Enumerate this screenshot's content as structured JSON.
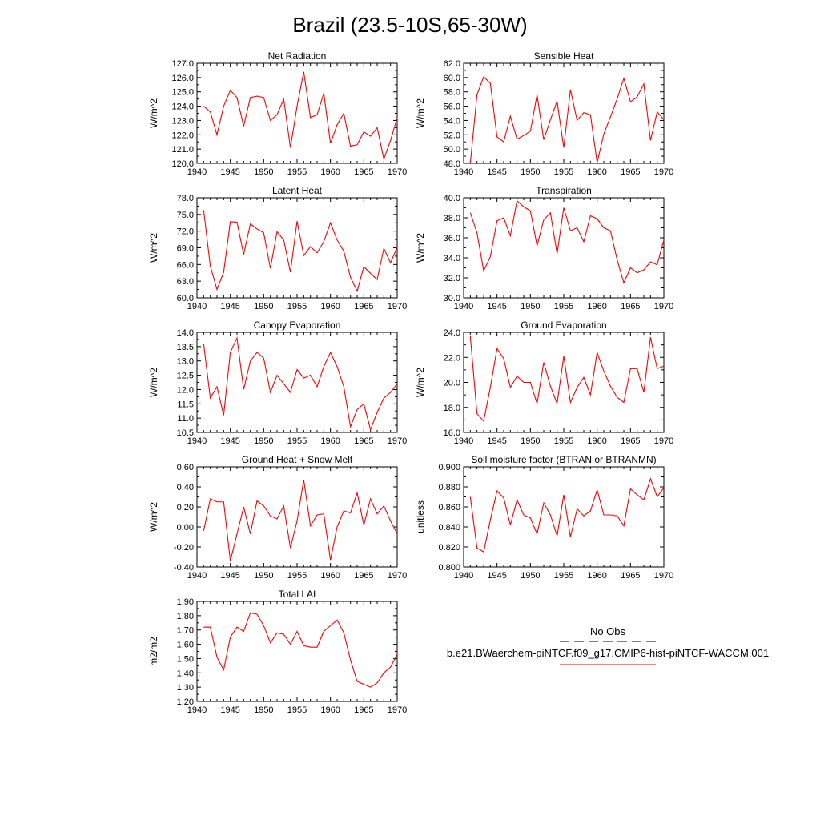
{
  "figure": {
    "title": "Brazil (23.5-10S,65-30W)",
    "legend": {
      "obs_label": "No Obs",
      "model_label": "b.e21.BWaerchem-piNTCF.f09_g17.CMIP6-hist-piNTCF-WACCM.001"
    },
    "colors": {
      "model_line": "#ff0000",
      "obs_line": "#000000",
      "axis": "#000000"
    }
  },
  "chart_data": [
    {
      "type": "line",
      "title": "Net Radiation",
      "ylabel": "W/m^2",
      "xlabel": "",
      "xlim": [
        1940,
        1970
      ],
      "ylim": [
        120.0,
        127.0
      ],
      "xticks": [
        "1940",
        "1945",
        "1950",
        "1955",
        "1960",
        "1965",
        "1970"
      ],
      "yticks": [
        "120.0",
        "121.0",
        "122.0",
        "123.0",
        "124.0",
        "125.0",
        "126.0",
        "127.0"
      ],
      "x": [
        1941,
        1942,
        1943,
        1944,
        1945,
        1946,
        1947,
        1948,
        1949,
        1950,
        1951,
        1952,
        1953,
        1954,
        1955,
        1956,
        1957,
        1958,
        1959,
        1960,
        1961,
        1962,
        1963,
        1964,
        1965,
        1966,
        1967,
        1968,
        1969,
        1970
      ],
      "series": [
        {
          "name": "b.e21.BWaerchem-piNTCF.f09_g17.CMIP6-hist-piNTCF-WACCM.001",
          "values": [
            124.0,
            123.6,
            122.0,
            124.0,
            125.1,
            124.6,
            122.6,
            124.6,
            124.7,
            124.6,
            123.0,
            123.4,
            124.5,
            121.1,
            124.0,
            126.4,
            123.2,
            123.4,
            124.9,
            121.4,
            122.7,
            123.5,
            121.2,
            121.3,
            122.2,
            121.9,
            122.5,
            120.3,
            121.6,
            123.2
          ]
        }
      ]
    },
    {
      "type": "line",
      "title": "Sensible Heat",
      "ylabel": "W/m^2",
      "xlabel": "",
      "xlim": [
        1940,
        1970
      ],
      "ylim": [
        48.0,
        62.0
      ],
      "xticks": [
        "1940",
        "1945",
        "1950",
        "1955",
        "1960",
        "1965",
        "1970"
      ],
      "yticks": [
        "48.0",
        "50.0",
        "52.0",
        "54.0",
        "56.0",
        "58.0",
        "60.0",
        "62.0"
      ],
      "x": [
        1941,
        1942,
        1943,
        1944,
        1945,
        1946,
        1947,
        1948,
        1949,
        1950,
        1951,
        1952,
        1953,
        1954,
        1955,
        1956,
        1957,
        1958,
        1959,
        1960,
        1961,
        1962,
        1963,
        1964,
        1965,
        1966,
        1967,
        1968,
        1969,
        1970
      ],
      "series": [
        {
          "name": "b.e21.BWaerchem-piNTCF.f09_g17.CMIP6-hist-piNTCF-WACCM.001",
          "values": [
            48.0,
            57.6,
            60.1,
            59.2,
            51.7,
            51.0,
            54.6,
            51.4,
            51.9,
            52.5,
            57.6,
            51.3,
            54.1,
            56.7,
            50.2,
            58.3,
            54.0,
            55.1,
            54.8,
            48.1,
            52.1,
            54.5,
            57.0,
            59.9,
            56.6,
            57.3,
            59.1,
            51.2,
            55.2,
            54.1
          ]
        }
      ]
    },
    {
      "type": "line",
      "title": "Latent Heat",
      "ylabel": "W/m^2",
      "xlabel": "",
      "xlim": [
        1940,
        1970
      ],
      "ylim": [
        60.0,
        78.0
      ],
      "xticks": [
        "1940",
        "1945",
        "1950",
        "1955",
        "1960",
        "1965",
        "1970"
      ],
      "yticks": [
        "60.0",
        "63.0",
        "66.0",
        "69.0",
        "72.0",
        "75.0",
        "78.0"
      ],
      "x": [
        1941,
        1942,
        1943,
        1944,
        1945,
        1946,
        1947,
        1948,
        1949,
        1950,
        1951,
        1952,
        1953,
        1954,
        1955,
        1956,
        1957,
        1958,
        1959,
        1960,
        1961,
        1962,
        1963,
        1964,
        1965,
        1966,
        1967,
        1968,
        1969,
        1970
      ],
      "series": [
        {
          "name": "b.e21.BWaerchem-piNTCF.f09_g17.CMIP6-hist-piNTCF-WACCM.001",
          "values": [
            75.8,
            65.7,
            61.5,
            64.6,
            73.7,
            73.6,
            67.8,
            73.3,
            72.4,
            71.7,
            65.3,
            71.9,
            70.4,
            64.6,
            73.8,
            67.6,
            69.2,
            68.1,
            70.1,
            73.5,
            70.4,
            68.4,
            63.7,
            61.2,
            65.6,
            64.4,
            63.3,
            68.9,
            66.3,
            69.1
          ]
        }
      ]
    },
    {
      "type": "line",
      "title": "Transpiration",
      "ylabel": "W/m^2",
      "xlabel": "",
      "xlim": [
        1940,
        1970
      ],
      "ylim": [
        30.0,
        40.0
      ],
      "xticks": [
        "1940",
        "1945",
        "1950",
        "1955",
        "1960",
        "1965",
        "1970"
      ],
      "yticks": [
        "30.0",
        "32.0",
        "34.0",
        "36.0",
        "38.0",
        "40.0"
      ],
      "x": [
        1941,
        1942,
        1943,
        1944,
        1945,
        1946,
        1947,
        1948,
        1949,
        1950,
        1951,
        1952,
        1953,
        1954,
        1955,
        1956,
        1957,
        1958,
        1959,
        1960,
        1961,
        1962,
        1963,
        1964,
        1965,
        1966,
        1967,
        1968,
        1969,
        1970
      ],
      "series": [
        {
          "name": "b.e21.BWaerchem-piNTCF.f09_g17.CMIP6-hist-piNTCF-WACCM.001",
          "values": [
            38.5,
            36.5,
            32.7,
            34.1,
            37.7,
            38.0,
            36.2,
            39.7,
            39.1,
            38.7,
            35.2,
            37.8,
            38.5,
            34.4,
            39.0,
            36.7,
            37.0,
            35.6,
            38.2,
            37.9,
            37.0,
            36.7,
            33.8,
            31.5,
            33.0,
            32.5,
            32.8,
            33.6,
            33.3,
            35.8
          ]
        }
      ]
    },
    {
      "type": "line",
      "title": "Canopy Evaporation",
      "ylabel": "W/m^2",
      "xlabel": "",
      "xlim": [
        1940,
        1970
      ],
      "ylim": [
        10.5,
        14.0
      ],
      "xticks": [
        "1940",
        "1945",
        "1950",
        "1955",
        "1960",
        "1965",
        "1970"
      ],
      "yticks": [
        "10.5",
        "11.0",
        "11.5",
        "12.0",
        "12.5",
        "13.0",
        "13.5",
        "14.0"
      ],
      "x": [
        1941,
        1942,
        1943,
        1944,
        1945,
        1946,
        1947,
        1948,
        1949,
        1950,
        1951,
        1952,
        1953,
        1954,
        1955,
        1956,
        1957,
        1958,
        1959,
        1960,
        1961,
        1962,
        1963,
        1964,
        1965,
        1966,
        1967,
        1968,
        1969,
        1970
      ],
      "series": [
        {
          "name": "b.e21.BWaerchem-piNTCF.f09_g17.CMIP6-hist-piNTCF-WACCM.001",
          "values": [
            13.6,
            11.7,
            12.1,
            11.1,
            13.3,
            13.8,
            12.0,
            13.0,
            13.3,
            13.1,
            11.9,
            12.5,
            12.2,
            11.9,
            12.7,
            12.4,
            12.5,
            12.1,
            12.8,
            13.3,
            12.8,
            12.1,
            10.7,
            11.3,
            11.5,
            10.6,
            11.2,
            11.7,
            11.9,
            12.2
          ]
        }
      ]
    },
    {
      "type": "line",
      "title": "Ground Evaporation",
      "ylabel": "W/m^2",
      "xlabel": "",
      "xlim": [
        1940,
        1970
      ],
      "ylim": [
        16.0,
        24.0
      ],
      "xticks": [
        "1940",
        "1945",
        "1950",
        "1955",
        "1960",
        "1965",
        "1970"
      ],
      "yticks": [
        "16.0",
        "18.0",
        "20.0",
        "22.0",
        "24.0"
      ],
      "x": [
        1941,
        1942,
        1943,
        1944,
        1945,
        1946,
        1947,
        1948,
        1949,
        1950,
        1951,
        1952,
        1953,
        1954,
        1955,
        1956,
        1957,
        1958,
        1959,
        1960,
        1961,
        1962,
        1963,
        1964,
        1965,
        1966,
        1967,
        1968,
        1969,
        1970
      ],
      "series": [
        {
          "name": "b.e21.BWaerchem-piNTCF.f09_g17.CMIP6-hist-piNTCF-WACCM.001",
          "values": [
            23.7,
            17.5,
            16.9,
            19.6,
            22.7,
            21.9,
            19.6,
            20.5,
            20.0,
            20.0,
            18.3,
            21.6,
            19.7,
            18.3,
            22.1,
            18.4,
            19.6,
            20.4,
            19.0,
            22.4,
            20.9,
            19.7,
            18.8,
            18.4,
            21.1,
            21.1,
            19.2,
            23.6,
            21.1,
            21.3
          ]
        }
      ]
    },
    {
      "type": "line",
      "title": "Ground Heat + Snow Melt",
      "ylabel": "W/m^2",
      "xlabel": "",
      "xlim": [
        1940,
        1970
      ],
      "ylim": [
        -0.4,
        0.6
      ],
      "xticks": [
        "1940",
        "1945",
        "1950",
        "1955",
        "1960",
        "1965",
        "1970"
      ],
      "yticks": [
        "-0.40",
        "-0.20",
        "0.00",
        "0.20",
        "0.40",
        "0.60"
      ],
      "x": [
        1941,
        1942,
        1943,
        1944,
        1945,
        1946,
        1947,
        1948,
        1949,
        1950,
        1951,
        1952,
        1953,
        1954,
        1955,
        1956,
        1957,
        1958,
        1959,
        1960,
        1961,
        1962,
        1963,
        1964,
        1965,
        1966,
        1967,
        1968,
        1969,
        1970
      ],
      "series": [
        {
          "name": "b.e21.BWaerchem-piNTCF.f09_g17.CMIP6-hist-piNTCF-WACCM.001",
          "values": [
            -0.04,
            0.28,
            0.25,
            0.25,
            -0.34,
            -0.07,
            0.2,
            -0.07,
            0.26,
            0.21,
            0.11,
            0.08,
            0.21,
            -0.21,
            0.06,
            0.47,
            0.01,
            0.12,
            0.13,
            -0.33,
            0.0,
            0.16,
            0.14,
            0.34,
            0.02,
            0.28,
            0.13,
            0.21,
            0.06,
            -0.07
          ]
        }
      ]
    },
    {
      "type": "line",
      "title": "Soil moisture factor (BTRAN or BTRANMN)",
      "ylabel": "unitless",
      "xlabel": "",
      "xlim": [
        1940,
        1970
      ],
      "ylim": [
        0.8,
        0.9
      ],
      "xticks": [
        "1940",
        "1945",
        "1950",
        "1955",
        "1960",
        "1965",
        "1970"
      ],
      "yticks": [
        "0.800",
        "0.820",
        "0.840",
        "0.860",
        "0.880",
        "0.900"
      ],
      "x": [
        1941,
        1942,
        1943,
        1944,
        1945,
        1946,
        1947,
        1948,
        1949,
        1950,
        1951,
        1952,
        1953,
        1954,
        1955,
        1956,
        1957,
        1958,
        1959,
        1960,
        1961,
        1962,
        1963,
        1964,
        1965,
        1966,
        1967,
        1968,
        1969,
        1970
      ],
      "series": [
        {
          "name": "b.e21.BWaerchem-piNTCF.f09_g17.CMIP6-hist-piNTCF-WACCM.001",
          "values": [
            0.87,
            0.819,
            0.815,
            0.847,
            0.876,
            0.869,
            0.842,
            0.867,
            0.852,
            0.849,
            0.833,
            0.864,
            0.852,
            0.831,
            0.872,
            0.83,
            0.858,
            0.851,
            0.856,
            0.877,
            0.852,
            0.852,
            0.851,
            0.841,
            0.878,
            0.872,
            0.867,
            0.888,
            0.87,
            0.879
          ]
        }
      ]
    },
    {
      "type": "line",
      "title": "Total LAI",
      "ylabel": "m2/m2",
      "xlabel": "",
      "xlim": [
        1940,
        1970
      ],
      "ylim": [
        1.2,
        1.9
      ],
      "xticks": [
        "1940",
        "1945",
        "1950",
        "1955",
        "1960",
        "1965",
        "1970"
      ],
      "yticks": [
        "1.20",
        "1.30",
        "1.40",
        "1.50",
        "1.60",
        "1.70",
        "1.80",
        "1.90"
      ],
      "x": [
        1941,
        1942,
        1943,
        1944,
        1945,
        1946,
        1947,
        1948,
        1949,
        1950,
        1951,
        1952,
        1953,
        1954,
        1955,
        1956,
        1957,
        1958,
        1959,
        1960,
        1961,
        1962,
        1963,
        1964,
        1965,
        1966,
        1967,
        1968,
        1969,
        1970
      ],
      "series": [
        {
          "name": "b.e21.BWaerchem-piNTCF.f09_g17.CMIP6-hist-piNTCF-WACCM.001",
          "values": [
            1.72,
            1.72,
            1.51,
            1.42,
            1.65,
            1.72,
            1.69,
            1.82,
            1.81,
            1.73,
            1.61,
            1.68,
            1.67,
            1.6,
            1.69,
            1.59,
            1.58,
            1.58,
            1.69,
            1.73,
            1.77,
            1.68,
            1.49,
            1.34,
            1.32,
            1.3,
            1.33,
            1.4,
            1.44,
            1.53
          ]
        }
      ]
    }
  ]
}
